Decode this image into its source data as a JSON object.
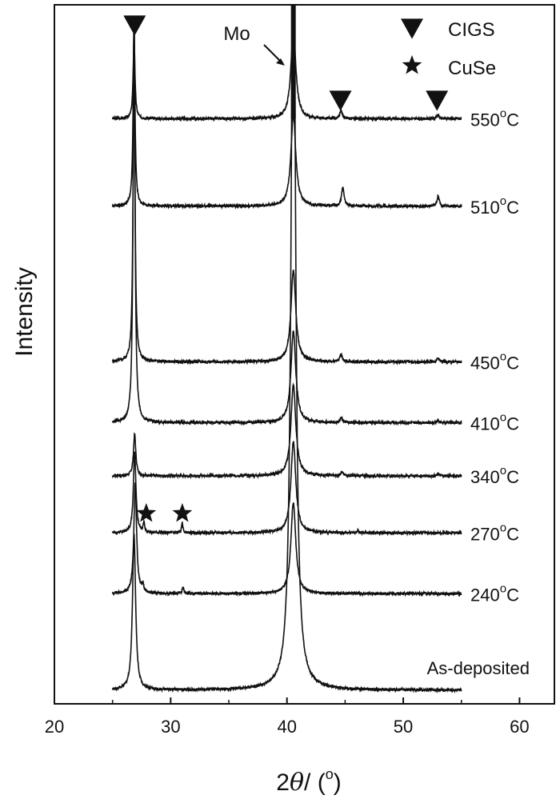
{
  "chart_data": {
    "type": "line",
    "title": "",
    "xlabel_main": "2",
    "xlabel_theta": "θ",
    "xlabel_rest": "/ (",
    "xlabel_deg": "o",
    "xlabel_close": ")",
    "ylabel": "Intensity",
    "xlim": [
      20,
      63
    ],
    "x_ticks": [
      "20",
      "30",
      "40",
      "50",
      "60"
    ],
    "x_tick_values": [
      20,
      30,
      40,
      50,
      60
    ],
    "data_x_range": [
      25,
      55
    ],
    "y_ticks": [],
    "grid": false,
    "legend_position": "top-right",
    "legend": [
      {
        "marker": "triangle-down",
        "label": "CIGS"
      },
      {
        "marker": "star",
        "label": "CuSe"
      }
    ],
    "annotations": [
      {
        "text": "Mo",
        "x": 40.5,
        "kind": "arrow"
      }
    ],
    "markers": [
      {
        "marker": "triangle-down",
        "x": 26.9,
        "series": "550°C"
      },
      {
        "marker": "triangle-down",
        "x": 44.6,
        "series": "550°C"
      },
      {
        "marker": "triangle-down",
        "x": 52.9,
        "series": "550°C"
      },
      {
        "marker": "star",
        "x": 27.9,
        "series": "270°C"
      },
      {
        "marker": "star",
        "x": 31.0,
        "series": "270°C"
      }
    ],
    "series": [
      {
        "name": "550°C",
        "baseline": 7.7,
        "label": "550",
        "peaks": [
          {
            "x": 26.85,
            "h": 1.1,
            "w": 0.09
          },
          {
            "x": 40.55,
            "h": 1.2,
            "w": 0.25
          },
          {
            "x": 44.65,
            "h": 0.1,
            "w": 0.12
          },
          {
            "x": 53.0,
            "h": 0.05,
            "w": 0.12
          }
        ]
      },
      {
        "name": "510°C",
        "baseline": 6.55,
        "label": "510",
        "peaks": [
          {
            "x": 26.85,
            "h": 2.5,
            "w": 0.09
          },
          {
            "x": 40.55,
            "h": 1.2,
            "w": 0.25
          },
          {
            "x": 44.8,
            "h": 0.25,
            "w": 0.12
          },
          {
            "x": 53.0,
            "h": 0.13,
            "w": 0.12
          }
        ]
      },
      {
        "name": "450°C",
        "baseline": 4.5,
        "label": "450",
        "peaks": [
          {
            "x": 26.85,
            "h": 4.5,
            "w": 0.09
          },
          {
            "x": 40.55,
            "h": 1.2,
            "w": 0.25
          },
          {
            "x": 44.65,
            "h": 0.1,
            "w": 0.12
          },
          {
            "x": 53.0,
            "h": 0.05,
            "w": 0.12
          }
        ]
      },
      {
        "name": "410°C",
        "baseline": 3.7,
        "label": "410",
        "peaks": [
          {
            "x": 26.85,
            "h": 5.2,
            "w": 0.1
          },
          {
            "x": 40.55,
            "h": 1.2,
            "w": 0.25
          },
          {
            "x": 44.65,
            "h": 0.06,
            "w": 0.12
          },
          {
            "x": 53.0,
            "h": 0.03,
            "w": 0.12
          }
        ]
      },
      {
        "name": "340°C",
        "baseline": 3.0,
        "label": "340",
        "peaks": [
          {
            "x": 26.9,
            "h": 0.55,
            "w": 0.12
          },
          {
            "x": 40.55,
            "h": 1.2,
            "w": 0.25
          },
          {
            "x": 44.7,
            "h": 0.05,
            "w": 0.12
          },
          {
            "x": 53.0,
            "h": 0.02,
            "w": 0.12
          }
        ]
      },
      {
        "name": "270°C",
        "baseline": 2.25,
        "label": "270",
        "peaks": [
          {
            "x": 26.9,
            "h": 1.05,
            "w": 0.13
          },
          {
            "x": 27.7,
            "h": 0.12,
            "w": 0.08
          },
          {
            "x": 31.0,
            "h": 0.13,
            "w": 0.07
          },
          {
            "x": 40.55,
            "h": 1.2,
            "w": 0.25
          },
          {
            "x": 46.1,
            "h": 0.03,
            "w": 0.06
          }
        ]
      },
      {
        "name": "240°C",
        "baseline": 1.45,
        "label": "240",
        "peaks": [
          {
            "x": 26.95,
            "h": 1.45,
            "w": 0.14
          },
          {
            "x": 27.6,
            "h": 0.1,
            "w": 0.1
          },
          {
            "x": 31.05,
            "h": 0.09,
            "w": 0.07
          },
          {
            "x": 40.55,
            "h": 1.2,
            "w": 0.25
          }
        ]
      },
      {
        "name": "As-deposited",
        "baseline": 0.18,
        "label": "As-deposited",
        "peaks": [
          {
            "x": 26.85,
            "h": 2.05,
            "w": 0.16
          },
          {
            "x": 40.55,
            "h": 11.0,
            "w": 0.22
          }
        ]
      }
    ],
    "ylim": [
      0,
      9.2
    ],
    "line_color": "#111111"
  }
}
